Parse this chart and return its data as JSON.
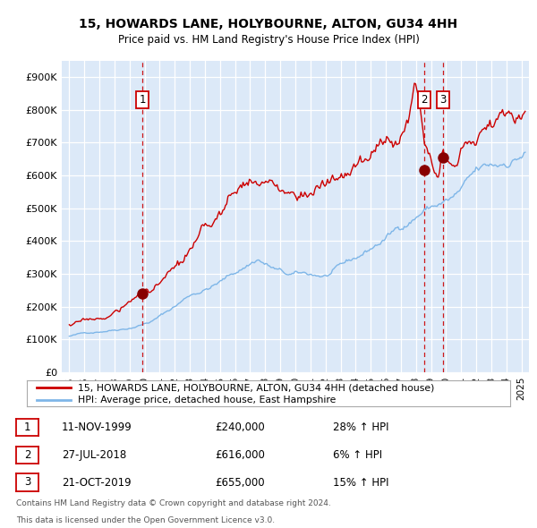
{
  "title": "15, HOWARDS LANE, HOLYBOURNE, ALTON, GU34 4HH",
  "subtitle": "Price paid vs. HM Land Registry's House Price Index (HPI)",
  "xlim": [
    1994.5,
    2025.5
  ],
  "ylim": [
    0,
    950000
  ],
  "yticks": [
    0,
    100000,
    200000,
    300000,
    400000,
    500000,
    600000,
    700000,
    800000,
    900000
  ],
  "ytick_labels": [
    "£0",
    "£100K",
    "£200K",
    "£300K",
    "£400K",
    "£500K",
    "£600K",
    "£700K",
    "£800K",
    "£900K"
  ],
  "xticks": [
    1995,
    1996,
    1997,
    1998,
    1999,
    2000,
    2001,
    2002,
    2003,
    2004,
    2005,
    2006,
    2007,
    2008,
    2009,
    2010,
    2011,
    2012,
    2013,
    2014,
    2015,
    2016,
    2017,
    2018,
    2019,
    2020,
    2021,
    2022,
    2023,
    2024,
    2025
  ],
  "background_color": "#dce9f8",
  "outer_bg_color": "#ffffff",
  "red_line_color": "#cc0000",
  "blue_line_color": "#7eb6e8",
  "sale_dot_color": "#880000",
  "dashed_line_color": "#cc0000",
  "legend_red_label": "15, HOWARDS LANE, HOLYBOURNE, ALTON, GU34 4HH (detached house)",
  "legend_blue_label": "HPI: Average price, detached house, East Hampshire",
  "transactions": [
    {
      "num": 1,
      "date": "11-NOV-1999",
      "price": 240000,
      "year": 1999.87,
      "hpi_pct": "28%",
      "arrow": "↑"
    },
    {
      "num": 2,
      "date": "27-JUL-2018",
      "price": 616000,
      "year": 2018.57,
      "hpi_pct": "6%",
      "arrow": "↑"
    },
    {
      "num": 3,
      "date": "21-OCT-2019",
      "price": 655000,
      "year": 2019.8,
      "hpi_pct": "15%",
      "arrow": "↑"
    }
  ],
  "footer1": "Contains HM Land Registry data © Crown copyright and database right 2024.",
  "footer2": "This data is licensed under the Open Government Licence v3.0."
}
